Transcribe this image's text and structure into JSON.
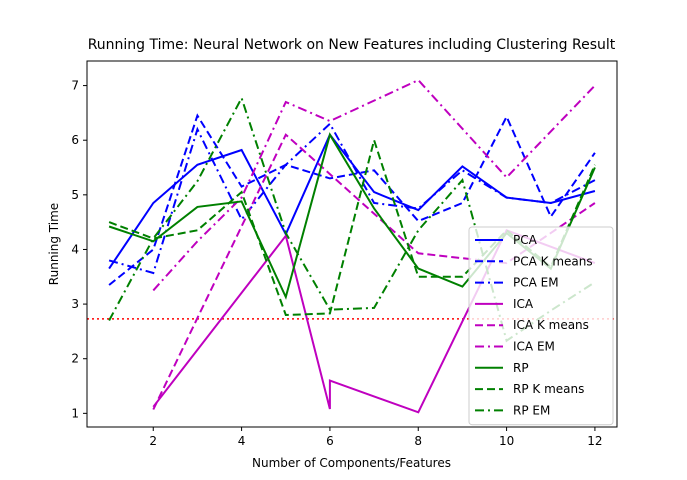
{
  "chart_data": {
    "type": "line",
    "title": "Running Time: Neural Network on New Features including Clustering Result",
    "xlabel": "Number of Components/Features",
    "ylabel": "Running Time",
    "xlim": [
      0.5,
      12.5
    ],
    "ylim": [
      0.75,
      7.45
    ],
    "xticks": [
      2,
      4,
      6,
      8,
      10,
      12
    ],
    "yticks": [
      1,
      2,
      3,
      4,
      5,
      6,
      7
    ],
    "grid": false,
    "legend_position": "lower-right",
    "reference_line": {
      "y": 2.73,
      "color": "#ff0000",
      "style": "dotted"
    },
    "series": [
      {
        "name": "PCA",
        "color": "#0000ff",
        "dash": "solid",
        "x": [
          1,
          2,
          3,
          4,
          5,
          6,
          7,
          8,
          9,
          10,
          11,
          12
        ],
        "y": [
          3.65,
          4.85,
          5.55,
          5.82,
          4.28,
          6.1,
          5.05,
          4.72,
          5.52,
          4.95,
          4.85,
          5.07
        ]
      },
      {
        "name": "PCA K means",
        "color": "#0000ff",
        "dash": "dashed",
        "x": [
          1,
          2,
          3,
          4,
          5,
          6,
          7,
          8,
          9,
          10,
          11,
          12
        ],
        "y": [
          3.35,
          4.0,
          6.45,
          5.15,
          5.55,
          5.3,
          5.45,
          4.52,
          4.85,
          6.43,
          4.6,
          5.77
        ]
      },
      {
        "name": "PCA EM",
        "color": "#0000ff",
        "dash": "dashdot",
        "x": [
          1,
          2,
          3,
          4,
          5,
          6,
          7,
          8,
          9,
          10,
          11,
          12
        ],
        "y": [
          3.8,
          3.57,
          6.2,
          4.55,
          5.55,
          6.3,
          4.85,
          4.75,
          5.45,
          4.95,
          4.85,
          5.27
        ]
      },
      {
        "name": "ICA",
        "color": "#bf00bf",
        "dash": "solid",
        "x": [
          2,
          5,
          6,
          6,
          8,
          10,
          12
        ],
        "y": [
          1.12,
          4.25,
          1.08,
          1.6,
          1.02,
          4.35,
          3.75
        ]
      },
      {
        "name": "ICA K means",
        "color": "#bf00bf",
        "dash": "dashed",
        "x": [
          2,
          5,
          6,
          8,
          10,
          12
        ],
        "y": [
          1.07,
          6.1,
          5.38,
          3.93,
          3.75,
          4.85
        ]
      },
      {
        "name": "ICA EM",
        "color": "#bf00bf",
        "dash": "dashdot",
        "x": [
          2,
          3,
          4,
          5,
          6,
          8,
          10,
          12
        ],
        "y": [
          3.25,
          4.15,
          4.95,
          6.7,
          6.35,
          7.1,
          5.32,
          7.0
        ]
      },
      {
        "name": "RP",
        "color": "#008000",
        "dash": "solid",
        "x": [
          1,
          2,
          3,
          4,
          5,
          6,
          7,
          8,
          9,
          10,
          11,
          12
        ],
        "y": [
          4.42,
          4.15,
          4.78,
          4.88,
          3.13,
          6.1,
          4.75,
          3.65,
          3.32,
          4.3,
          3.65,
          5.5
        ]
      },
      {
        "name": "RP K means",
        "color": "#008000",
        "dash": "dashed",
        "x": [
          1,
          2,
          3,
          4,
          5,
          6,
          7,
          8,
          9,
          10,
          11,
          12
        ],
        "y": [
          4.5,
          4.2,
          4.35,
          5.05,
          2.8,
          2.83,
          6.0,
          3.5,
          3.5,
          4.35,
          3.68,
          5.55
        ]
      },
      {
        "name": "RP EM",
        "color": "#008000",
        "dash": "dashdot",
        "x": [
          1,
          2,
          3,
          4,
          5,
          6,
          7,
          8,
          9,
          10,
          11,
          12
        ],
        "y": [
          2.7,
          4.2,
          5.25,
          6.77,
          4.3,
          2.9,
          2.93,
          4.35,
          5.27,
          2.33,
          2.88,
          3.4
        ]
      }
    ]
  }
}
